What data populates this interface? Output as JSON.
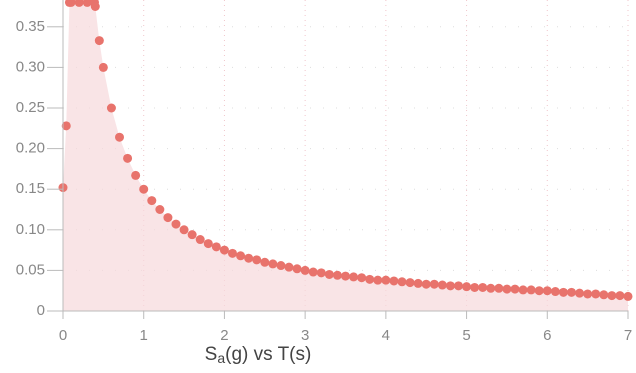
{
  "chart_data": {
    "type": "scatter",
    "xlabel_parts": [
      "S",
      "a",
      "(g) vs T(s)"
    ],
    "x": [
      0,
      0.04,
      0.08,
      0.1,
      0.2,
      0.3,
      0.39,
      0.4,
      0.45,
      0.5,
      0.6,
      0.7,
      0.8,
      0.9,
      1.0,
      1.1,
      1.2,
      1.3,
      1.4,
      1.5,
      1.6,
      1.7,
      1.8,
      1.9,
      2.0,
      2.1,
      2.2,
      2.3,
      2.4,
      2.5,
      2.6,
      2.7,
      2.8,
      2.9,
      3.0,
      3.1,
      3.2,
      3.3,
      3.4,
      3.5,
      3.6,
      3.7,
      3.8,
      3.9,
      4.0,
      4.1,
      4.2,
      4.3,
      4.4,
      4.5,
      4.6,
      4.7,
      4.8,
      4.9,
      5.0,
      5.1,
      5.2,
      5.3,
      5.4,
      5.5,
      5.6,
      5.7,
      5.8,
      5.9,
      6.0,
      6.1,
      6.2,
      6.3,
      6.4,
      6.5,
      6.6,
      6.7,
      6.8,
      6.9,
      7.0
    ],
    "values": [
      0.152,
      0.228,
      0.38,
      0.38,
      0.38,
      0.38,
      0.38,
      0.375,
      0.333,
      0.3,
      0.25,
      0.214,
      0.188,
      0.167,
      0.15,
      0.136,
      0.125,
      0.115,
      0.107,
      0.1,
      0.094,
      0.088,
      0.083,
      0.079,
      0.075,
      0.071,
      0.068,
      0.065,
      0.063,
      0.06,
      0.058,
      0.056,
      0.054,
      0.052,
      0.05,
      0.048,
      0.047,
      0.045,
      0.044,
      0.043,
      0.042,
      0.041,
      0.039,
      0.038,
      0.038,
      0.037,
      0.036,
      0.035,
      0.034,
      0.033,
      0.033,
      0.032,
      0.031,
      0.031,
      0.03,
      0.029,
      0.029,
      0.028,
      0.028,
      0.027,
      0.027,
      0.026,
      0.026,
      0.025,
      0.025,
      0.024,
      0.023,
      0.023,
      0.022,
      0.021,
      0.021,
      0.02,
      0.019,
      0.019,
      0.018
    ],
    "color": "#e8736c",
    "area_color": "#f6d9dc",
    "xlim": [
      0,
      7
    ],
    "xticks": [
      0,
      1,
      2,
      3,
      4,
      5,
      6,
      7
    ],
    "ylim": [
      0,
      0.383
    ],
    "yticks": [
      0,
      0.05,
      {
        "value": 0.1,
        "label": "0.10"
      },
      0.15,
      {
        "value": 0.2,
        "label": "0.20"
      },
      0.25,
      {
        "value": 0.3,
        "label": "0.30"
      },
      0.35
    ],
    "grid": true
  }
}
